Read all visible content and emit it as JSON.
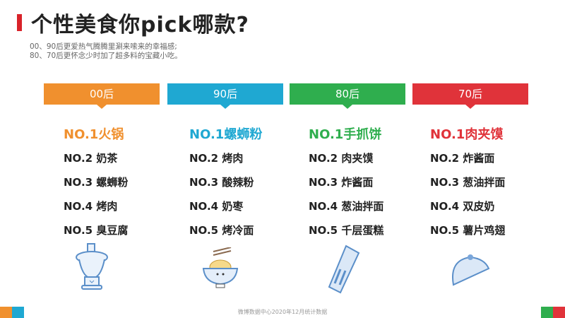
{
  "title": "个性美食你pick哪款?",
  "subtitle": [
    "00、90后更爱热气腾腾里涮来嗦来的幸福感;",
    "80、70后更怀念少时加了超多料的宝藏小吃。"
  ],
  "columns": [
    {
      "label": "00后",
      "color": "#f0902e",
      "items": [
        "NO.1火锅",
        "NO.2 奶茶",
        "NO.3 螺蛳粉",
        "NO.4 烤肉",
        "NO.5 臭豆腐"
      ],
      "icon": "hotpot-icon"
    },
    {
      "label": "90后",
      "color": "#1fa8d2",
      "items": [
        "NO.1螺蛳粉",
        "NO.2 烤肉",
        "NO.3 酸辣粉",
        "NO.4 奶枣",
        "NO.5 烤冷面"
      ],
      "icon": "noodle-bowl-icon"
    },
    {
      "label": "80后",
      "color": "#2fae4e",
      "items": [
        "NO.1手抓饼",
        "NO.2 肉夹馍",
        "NO.3 炸酱面",
        "NO.4 葱油拌面",
        "NO.5 千层蛋糕"
      ],
      "icon": "wrap-icon"
    },
    {
      "label": "70后",
      "color": "#e0333a",
      "items": [
        "NO.1肉夹馍",
        "NO.2 炸酱面",
        "NO.3 葱油拌面",
        "NO.4 双皮奶",
        "NO.5 薯片鸡翅"
      ],
      "icon": "taco-icon"
    }
  ],
  "footer": "微博数据中心2020年12月统计数据"
}
